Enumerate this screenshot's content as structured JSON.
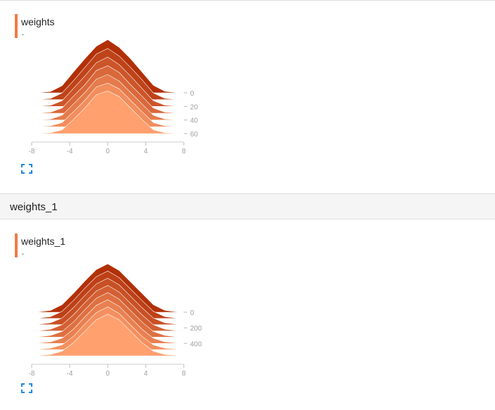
{
  "section": {
    "title": "weights_1"
  },
  "cards": [
    {
      "title": "weights",
      "subtitle": "."
    },
    {
      "title": "weights_1",
      "subtitle": "."
    }
  ],
  "colors": {
    "accent": "#f07a48",
    "expand_icon": "#1e88e5"
  },
  "icons": {
    "expand": "expand-icon"
  },
  "chart_data": [
    {
      "type": "area",
      "chart_subtype": "histogram-offset",
      "x_ticks": [
        "-8",
        "-4",
        "0",
        "4",
        "8"
      ],
      "xlim": [
        -8,
        8
      ],
      "y_ticks": [
        "0",
        "20",
        "40",
        "60"
      ],
      "ylim": [
        0,
        60
      ],
      "series": [
        {
          "step": 0,
          "x": [
            -7.2,
            -6,
            -4.8,
            -3.6,
            -2.4,
            -1.2,
            0,
            1.2,
            2.4,
            3.6,
            4.8,
            6,
            7.2
          ],
          "values": [
            0.03,
            0.14,
            0.75,
            2.2,
            3.6,
            4.9,
            5.6,
            4.8,
            3.6,
            2.2,
            0.8,
            0.16,
            0.03
          ]
        },
        {
          "step": 10,
          "x": [
            -7.2,
            -6,
            -4.8,
            -3.6,
            -2.4,
            -1.2,
            0,
            1.2,
            2.4,
            3.6,
            4.8,
            6,
            7.2
          ],
          "values": [
            0.03,
            0.13,
            0.7,
            2.0,
            3.4,
            4.8,
            5.4,
            4.6,
            3.4,
            2.1,
            0.7,
            0.14,
            0.03
          ]
        },
        {
          "step": 20,
          "x": [
            -7.2,
            -6,
            -4.8,
            -3.6,
            -2.4,
            -1.2,
            0,
            1.2,
            2.4,
            3.6,
            4.8,
            6,
            7.2
          ],
          "values": [
            0.03,
            0.12,
            0.6,
            1.9,
            3.2,
            4.6,
            5.2,
            4.4,
            3.2,
            1.9,
            0.6,
            0.13,
            0.03
          ]
        },
        {
          "step": 30,
          "x": [
            -7.2,
            -6,
            -4.8,
            -3.6,
            -2.4,
            -1.2,
            0,
            1.2,
            2.4,
            3.6,
            4.8,
            6,
            7.2
          ],
          "values": [
            0.03,
            0.11,
            0.55,
            1.8,
            3.0,
            4.5,
            5.0,
            4.3,
            3.0,
            1.8,
            0.55,
            0.12,
            0.03
          ]
        },
        {
          "step": 40,
          "x": [
            -7.2,
            -6,
            -4.8,
            -3.6,
            -2.4,
            -1.2,
            0,
            1.2,
            2.4,
            3.6,
            4.8,
            6,
            7.2
          ],
          "values": [
            0.03,
            0.1,
            0.5,
            1.7,
            2.9,
            4.3,
            4.8,
            4.1,
            2.9,
            1.7,
            0.5,
            0.11,
            0.03
          ]
        },
        {
          "step": 50,
          "x": [
            -7.2,
            -6,
            -4.8,
            -3.6,
            -2.4,
            -1.2,
            0,
            1.2,
            2.4,
            3.6,
            4.8,
            6,
            7.2
          ],
          "values": [
            0.03,
            0.1,
            0.45,
            1.6,
            2.8,
            4.2,
            4.6,
            4.0,
            2.8,
            1.6,
            0.45,
            0.1,
            0.03
          ]
        },
        {
          "step": 60,
          "x": [
            -7.2,
            -6,
            -4.8,
            -3.6,
            -2.4,
            -1.2,
            0,
            1.2,
            2.4,
            3.6,
            4.8,
            6,
            7.2
          ],
          "values": [
            0.03,
            0.1,
            0.4,
            1.5,
            2.7,
            4.1,
            4.5,
            3.9,
            2.7,
            1.5,
            0.4,
            0.1,
            0.03
          ]
        }
      ]
    },
    {
      "type": "area",
      "chart_subtype": "histogram-offset",
      "x_ticks": [
        "-8",
        "-4",
        "0",
        "4",
        "8"
      ],
      "xlim": [
        -8,
        8
      ],
      "y_ticks": [
        "0",
        "200",
        "400"
      ],
      "ylim": [
        0,
        560
      ],
      "series": [
        {
          "step": 0,
          "x": [
            -7.2,
            -6,
            -4.8,
            -3.6,
            -2.4,
            -1.2,
            0,
            1.2,
            2.4,
            3.6,
            4.8,
            6,
            7.2
          ],
          "values": [
            0.05,
            0.2,
            0.8,
            2.0,
            3.3,
            4.5,
            5.1,
            4.4,
            3.2,
            2.0,
            0.8,
            0.2,
            0.05
          ]
        },
        {
          "step": 80,
          "x": [
            -7.2,
            -6,
            -4.8,
            -3.6,
            -2.4,
            -1.2,
            0,
            1.2,
            2.4,
            3.6,
            4.8,
            6,
            7.2
          ],
          "values": [
            0.05,
            0.2,
            0.75,
            1.9,
            3.2,
            4.4,
            5.0,
            4.3,
            3.1,
            1.9,
            0.75,
            0.2,
            0.05
          ]
        },
        {
          "step": 160,
          "x": [
            -7.2,
            -6,
            -4.8,
            -3.6,
            -2.4,
            -1.2,
            0,
            1.2,
            2.4,
            3.6,
            4.8,
            6,
            7.2
          ],
          "values": [
            0.05,
            0.2,
            0.7,
            1.8,
            3.1,
            4.3,
            4.9,
            4.2,
            3.0,
            1.8,
            0.7,
            0.2,
            0.05
          ]
        },
        {
          "step": 240,
          "x": [
            -7.2,
            -6,
            -4.8,
            -3.6,
            -2.4,
            -1.2,
            0,
            1.2,
            2.4,
            3.6,
            4.8,
            6,
            7.2
          ],
          "values": [
            0.05,
            0.18,
            0.65,
            1.7,
            3.0,
            4.2,
            4.8,
            4.1,
            2.9,
            1.7,
            0.65,
            0.18,
            0.05
          ]
        },
        {
          "step": 320,
          "x": [
            -7.2,
            -6,
            -4.8,
            -3.6,
            -2.4,
            -1.2,
            0,
            1.2,
            2.4,
            3.6,
            4.8,
            6,
            7.2
          ],
          "values": [
            0.05,
            0.18,
            0.6,
            1.6,
            2.9,
            4.1,
            4.7,
            4.0,
            2.8,
            1.6,
            0.6,
            0.18,
            0.05
          ]
        },
        {
          "step": 400,
          "x": [
            -7.2,
            -6,
            -4.8,
            -3.6,
            -2.4,
            -1.2,
            0,
            1.2,
            2.4,
            3.6,
            4.8,
            6,
            7.2
          ],
          "values": [
            0.05,
            0.16,
            0.55,
            1.5,
            2.8,
            4.0,
            4.6,
            3.9,
            2.7,
            1.5,
            0.55,
            0.16,
            0.05
          ]
        },
        {
          "step": 480,
          "x": [
            -7.2,
            -6,
            -4.8,
            -3.6,
            -2.4,
            -1.2,
            0,
            1.2,
            2.4,
            3.6,
            4.8,
            6,
            7.2
          ],
          "values": [
            0.05,
            0.15,
            0.5,
            1.4,
            2.7,
            3.9,
            4.5,
            3.8,
            2.6,
            1.4,
            0.5,
            0.15,
            0.05
          ]
        },
        {
          "step": 560,
          "x": [
            -7.2,
            -6,
            -4.8,
            -3.6,
            -2.4,
            -1.2,
            0,
            1.2,
            2.4,
            3.6,
            4.8,
            6,
            7.2
          ],
          "values": [
            0.05,
            0.15,
            0.5,
            1.4,
            2.6,
            3.8,
            4.4,
            3.8,
            2.6,
            1.4,
            0.5,
            0.15,
            0.05
          ]
        }
      ]
    }
  ]
}
